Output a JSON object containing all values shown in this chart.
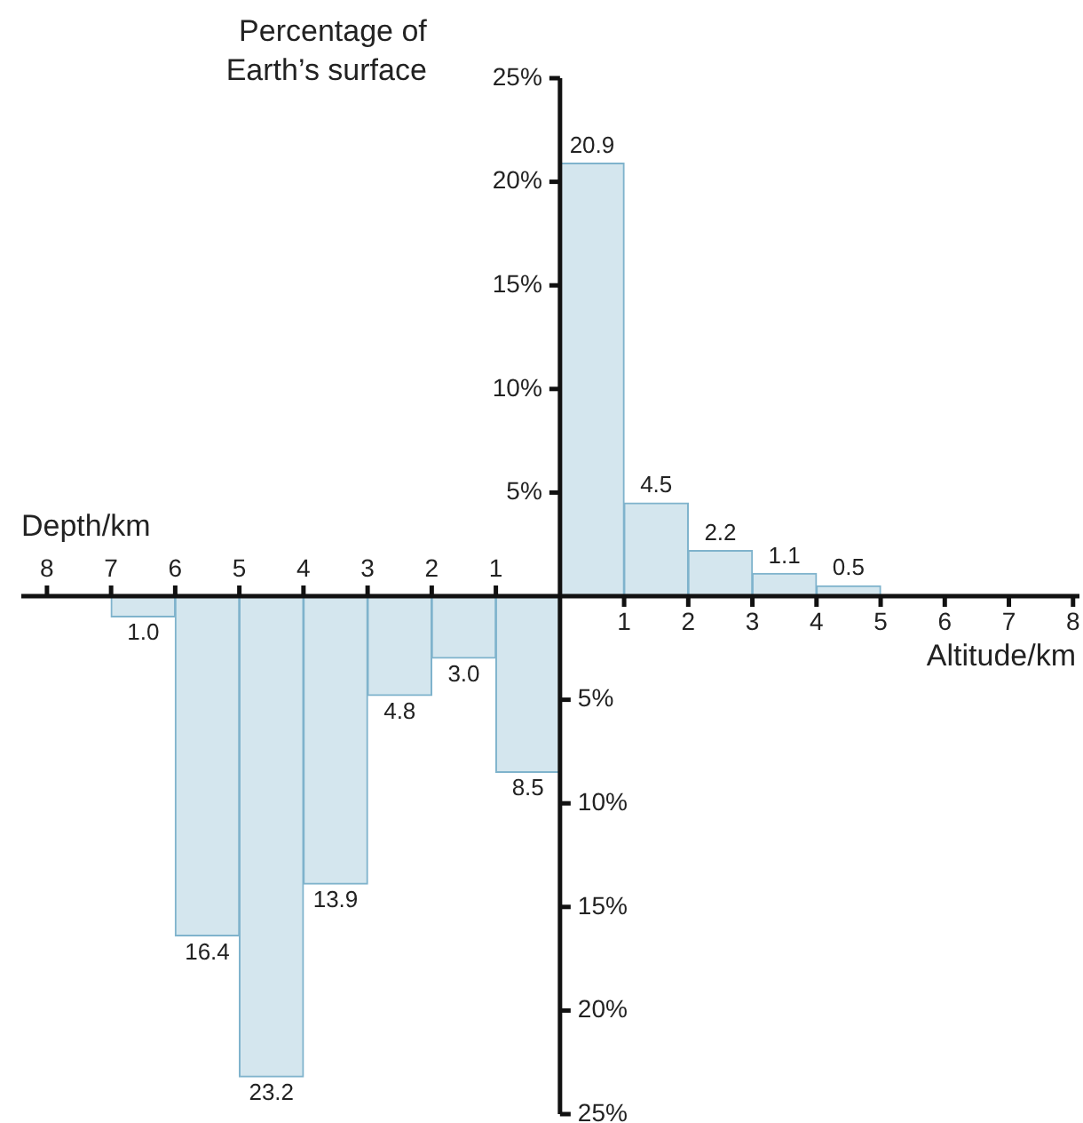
{
  "chart_data": {
    "type": "bar",
    "ylabel": "Percentage of Earth’s surface",
    "xlabel": "Altitude/km",
    "annotations": [
      "Depth/km"
    ],
    "series": [
      {
        "color": "#d4e6ee",
        "axis": "y2",
        "x": [
          -6.5,
          -5.5,
          -4.5,
          -3.5,
          -2.5,
          -1.5,
          -0.5
        ],
        "values": [
          1.0,
          16.4,
          23.2,
          13.9,
          4.8,
          3.0,
          8.5
        ],
        "value_labels": [
          "1.0",
          "16.4",
          "23.2",
          "13.9",
          "4.8",
          "3.0",
          "8.5"
        ]
      },
      {
        "color": "#d4e6ee",
        "x": [
          0.5,
          1.5,
          2.5,
          3.5,
          4.5
        ],
        "values": [
          20.9,
          4.5,
          2.2,
          1.1,
          0.5
        ],
        "data_labels": true
      }
    ],
    "xlim": [
      -8.4,
      8.1
    ],
    "xticks": [
      1,
      2,
      3,
      4,
      5,
      6,
      7,
      8
    ],
    "x2lim": [
      -8.4,
      8.1
    ],
    "x2ticks": [
      {
        "value": -8,
        "label": "8"
      },
      {
        "value": -7,
        "label": "7"
      },
      {
        "value": -6,
        "label": "6"
      },
      {
        "value": -5,
        "label": "5"
      },
      {
        "value": -4,
        "label": "4"
      },
      {
        "value": -3,
        "label": "3"
      },
      {
        "value": -2,
        "label": "2"
      },
      {
        "value": -1,
        "label": "1"
      }
    ],
    "ylim": [
      -25,
      25
    ],
    "yticks": [
      {
        "value": 5,
        "label": "5%"
      },
      {
        "value": 10,
        "label": "10%"
      },
      {
        "value": 15,
        "label": "15%"
      },
      {
        "value": 20,
        "label": "20%"
      },
      {
        "value": 25,
        "label": "25%"
      }
    ],
    "y2lim": [
      25,
      -25
    ],
    "y2ticks": [
      {
        "value": 5,
        "label": "5%"
      },
      {
        "value": 10,
        "label": "10%"
      },
      {
        "value": 15,
        "label": "15%"
      },
      {
        "value": 20,
        "label": "20%"
      },
      {
        "value": 25,
        "label": "25%"
      }
    ]
  }
}
